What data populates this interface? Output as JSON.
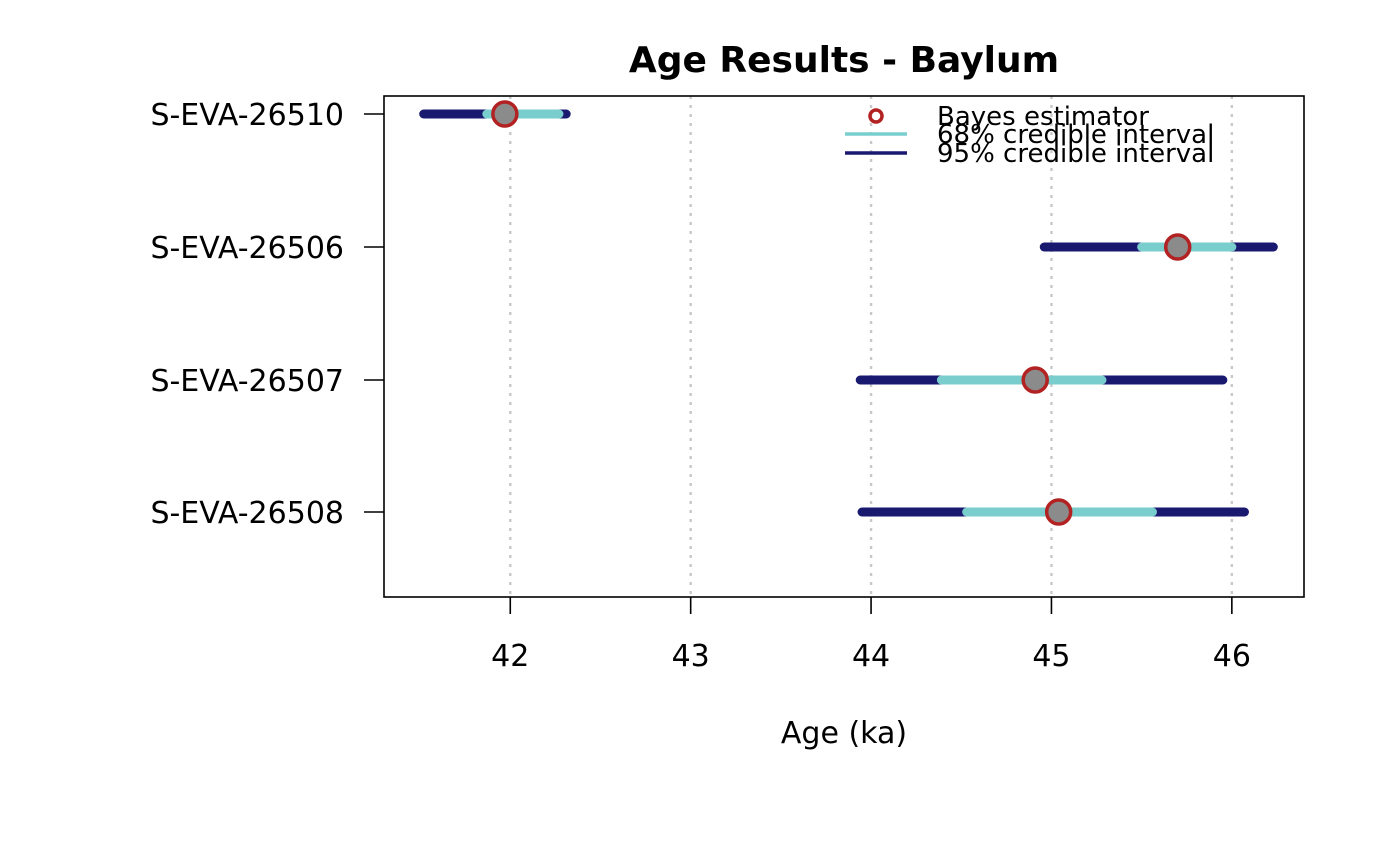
{
  "chart_data": {
    "type": "interval",
    "title": "Age Results - Baylum",
    "xlabel": "Age (ka)",
    "ylabel": "",
    "xlim": [
      41.3,
      46.4
    ],
    "xticks": [
      42,
      43,
      44,
      45,
      46
    ],
    "grid": "vertical dotted",
    "legend_position": "top-right",
    "legend": [
      {
        "label": "Bayes estimator",
        "kind": "point"
      },
      {
        "label": "68% credible interval",
        "kind": "line"
      },
      {
        "label": "95% credible interval",
        "kind": "line"
      }
    ],
    "samples": [
      {
        "name": "S-EVA-26510",
        "estimate": 41.97,
        "ci68": [
          41.87,
          42.27
        ],
        "ci95": [
          41.52,
          42.31
        ]
      },
      {
        "name": "S-EVA-26506",
        "estimate": 45.7,
        "ci68": [
          45.5,
          46.0
        ],
        "ci95": [
          44.96,
          46.23
        ]
      },
      {
        "name": "S-EVA-26507",
        "estimate": 44.91,
        "ci68": [
          44.39,
          45.28
        ],
        "ci95": [
          43.94,
          45.95
        ]
      },
      {
        "name": "S-EVA-26508",
        "estimate": 45.04,
        "ci68": [
          44.53,
          45.56
        ],
        "ci95": [
          43.95,
          46.07
        ]
      }
    ],
    "colors": {
      "ci95": "#191970",
      "ci68": "#79CDCD",
      "estimate_stroke": "#B22222",
      "estimate_fill": "#8B8B8B",
      "grid": "#C8C8C8",
      "axis": "#000000"
    }
  }
}
